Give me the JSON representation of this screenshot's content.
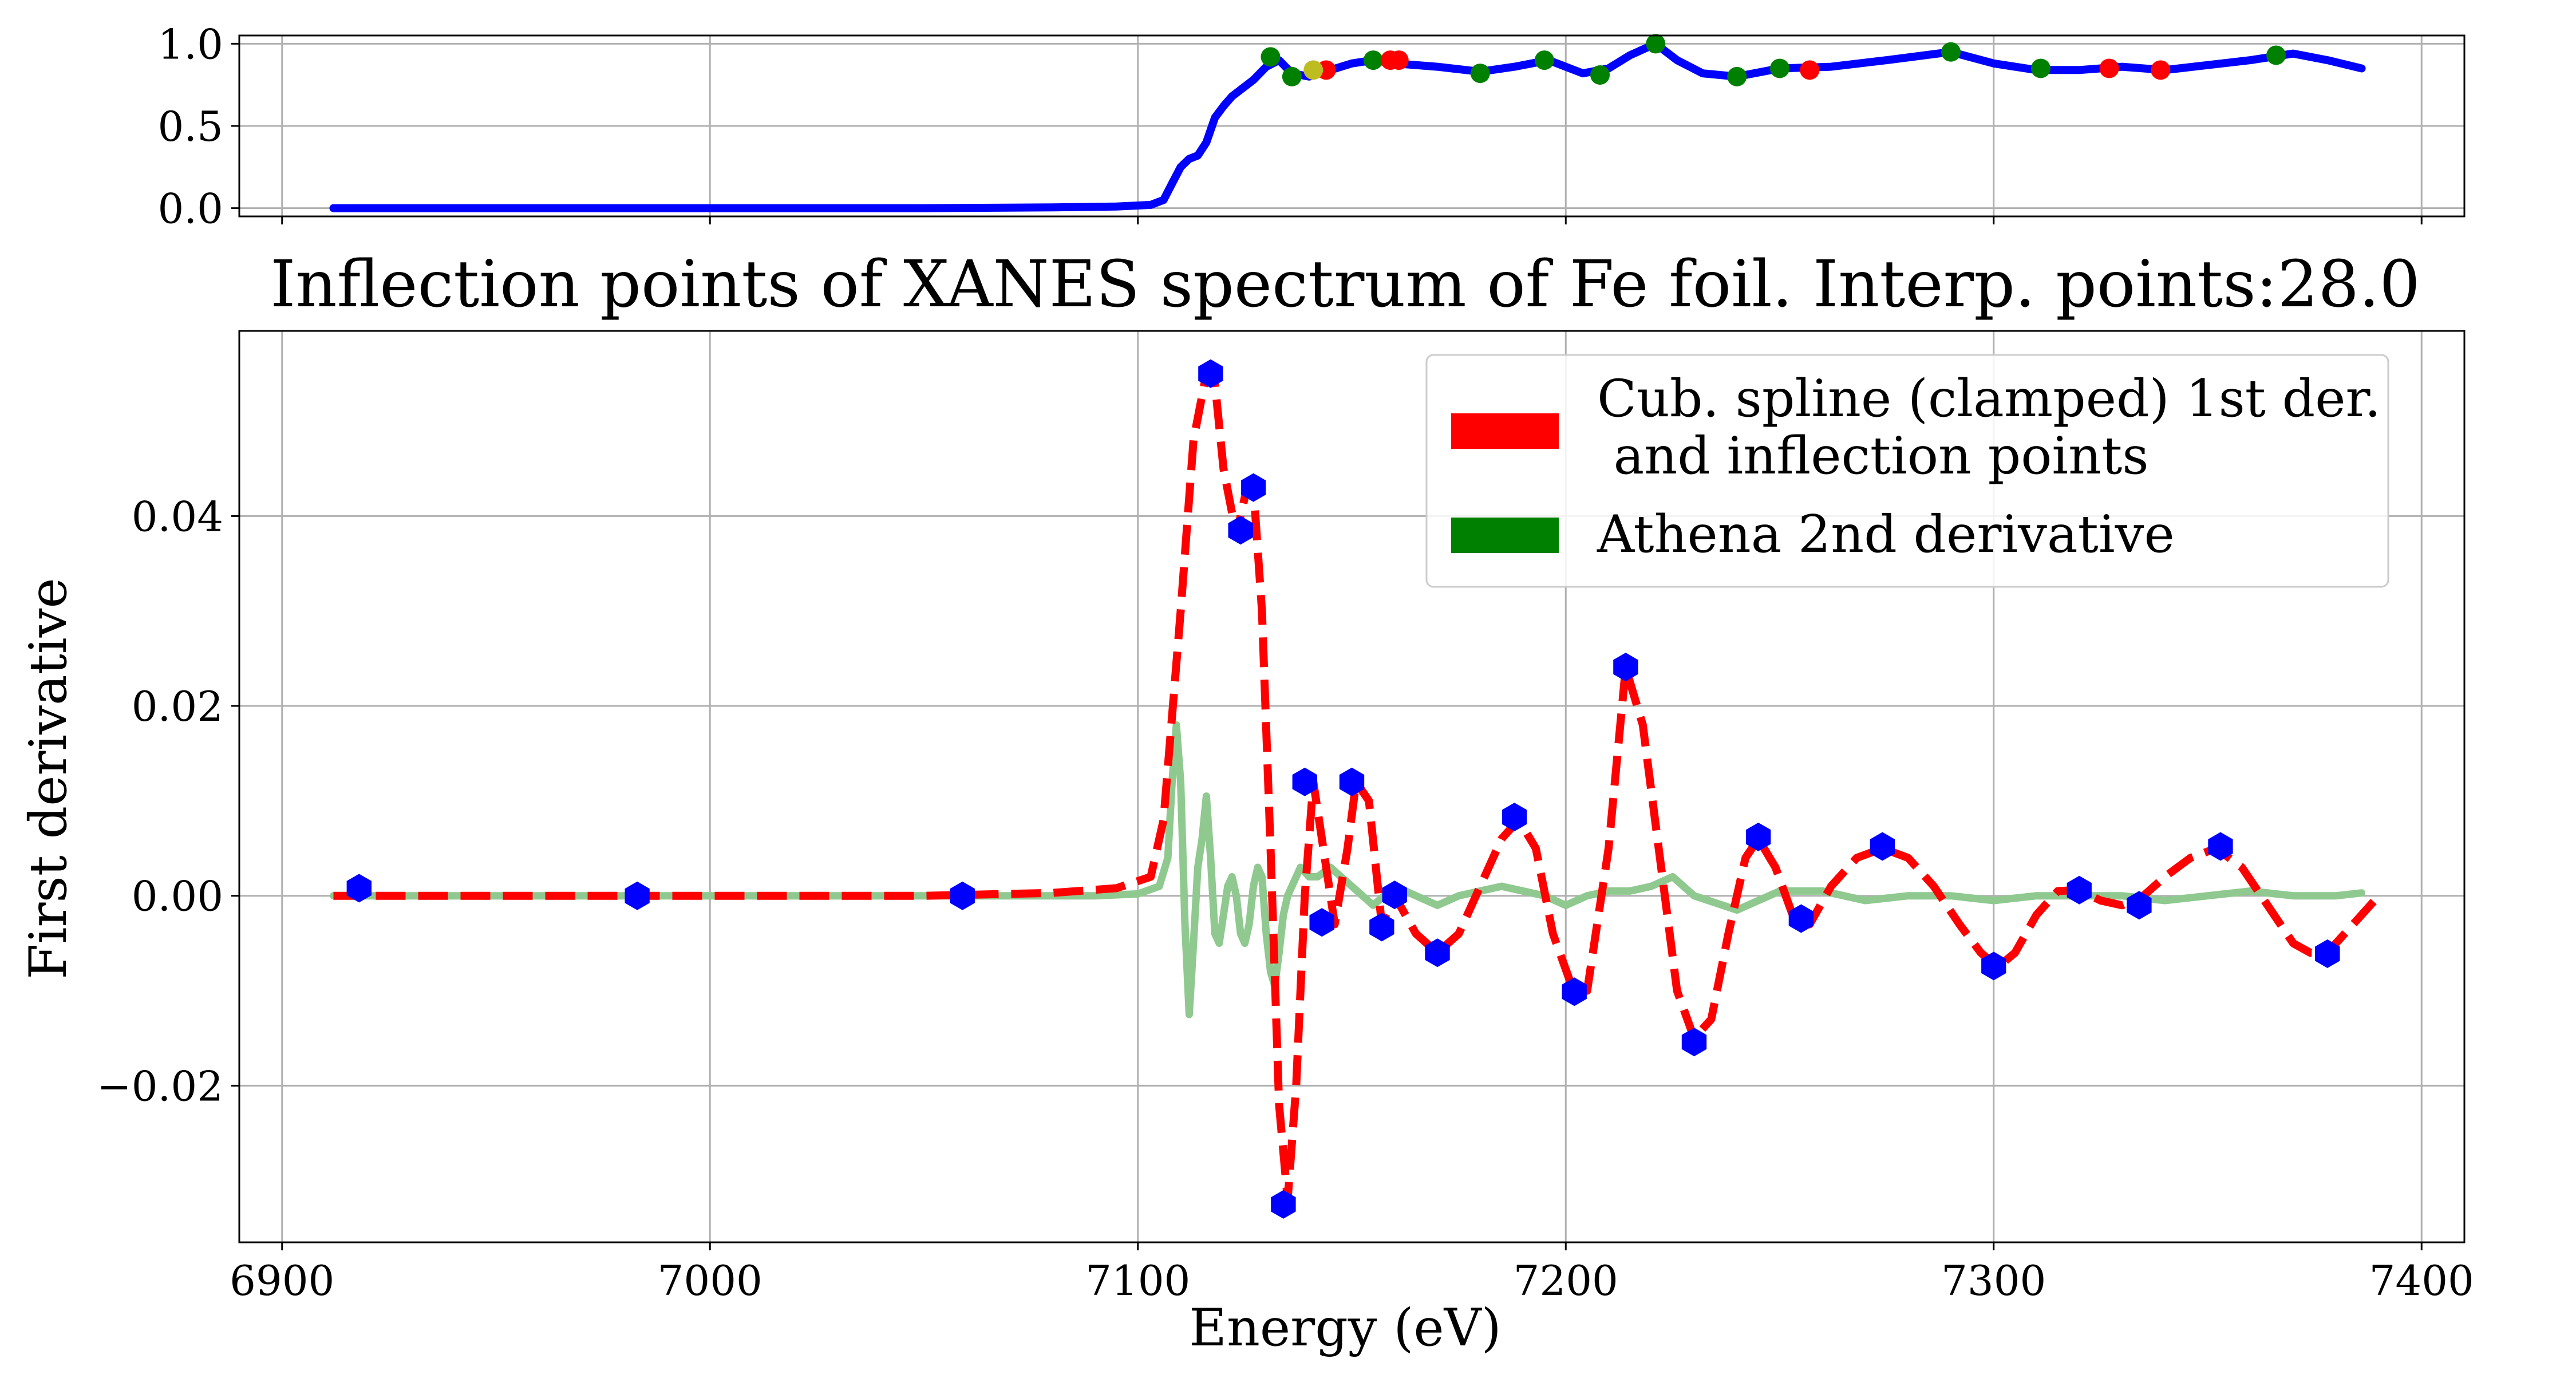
{
  "chart_data": [
    {
      "type": "line",
      "title": "",
      "xlabel": "",
      "ylabel": "",
      "xlim": [
        6890,
        7410
      ],
      "ylim": [
        -0.05,
        1.05
      ],
      "grid": true,
      "x_ticks": [
        6900,
        7000,
        7100,
        7200,
        7300,
        7400
      ],
      "y_ticks": [
        0.0,
        0.5,
        1.0
      ],
      "y_tick_labels": [
        "0.0",
        "0.5",
        "1.0"
      ],
      "series": [
        {
          "name": "",
          "color": "#0000ff",
          "x": [
            6912,
            6950,
            7000,
            7050,
            7080,
            7095,
            7103,
            7106,
            7108,
            7110,
            7112,
            7114,
            7116,
            7118,
            7120,
            7122,
            7124,
            7127,
            7130,
            7133,
            7136,
            7140,
            7145,
            7150,
            7155,
            7160,
            7170,
            7180,
            7188,
            7196,
            7204,
            7210,
            7215,
            7221,
            7226,
            7232,
            7240,
            7250,
            7262,
            7275,
            7290,
            7300,
            7310,
            7320,
            7330,
            7340,
            7350,
            7360,
            7370,
            7378,
            7386
          ],
          "y": [
            0.0,
            0.0,
            0.0,
            0.0,
            0.005,
            0.01,
            0.02,
            0.05,
            0.15,
            0.25,
            0.3,
            0.32,
            0.4,
            0.55,
            0.62,
            0.68,
            0.72,
            0.78,
            0.86,
            0.9,
            0.82,
            0.8,
            0.84,
            0.88,
            0.9,
            0.88,
            0.86,
            0.83,
            0.86,
            0.9,
            0.82,
            0.85,
            0.93,
            1.0,
            0.9,
            0.82,
            0.8,
            0.85,
            0.86,
            0.9,
            0.95,
            0.88,
            0.84,
            0.84,
            0.86,
            0.84,
            0.87,
            0.9,
            0.94,
            0.9,
            0.85
          ]
        }
      ],
      "markers": [
        {
          "color": "#008000",
          "x": [
            7131,
            7136,
            7155,
            7180,
            7195,
            7208,
            7221,
            7240,
            7250,
            7290,
            7311,
            7366
          ],
          "y": [
            0.92,
            0.8,
            0.9,
            0.82,
            0.9,
            0.81,
            1.0,
            0.8,
            0.85,
            0.95,
            0.85,
            0.93
          ]
        },
        {
          "color": "#ff0000",
          "x": [
            7144,
            7159,
            7161,
            7257,
            7327,
            7339
          ],
          "y": [
            0.84,
            0.9,
            0.9,
            0.84,
            0.85,
            0.84
          ]
        },
        {
          "color": "#bdbd22",
          "x": [
            7141
          ],
          "y": [
            0.84
          ]
        }
      ]
    },
    {
      "type": "line",
      "title": "Inflection points of XANES spectrum of Fe foil. Interp. points:28.0",
      "xlabel": "Energy (eV)",
      "ylabel": "First derivative",
      "xlim": [
        6890,
        7410
      ],
      "ylim": [
        -0.0365,
        0.0595
      ],
      "grid": true,
      "legend_position": "top-right",
      "x_ticks": [
        6900,
        7000,
        7100,
        7200,
        7300,
        7400
      ],
      "y_ticks": [
        -0.02,
        0.0,
        0.02,
        0.04
      ],
      "y_tick_labels": [
        "−0.02",
        "0.00",
        "0.02",
        "0.04"
      ],
      "legend": [
        {
          "label_line1": "Cub. spline (clamped) 1st der.",
          "label_line2": " and inflection points",
          "color": "#ff0000"
        },
        {
          "label_line1": "Athena 2nd derivative",
          "label_line2": "",
          "color": "#008000"
        }
      ],
      "series": [
        {
          "name": "Cub. spline (clamped) 1st der. and inflection points",
          "color": "#ff0000",
          "style": "dashed",
          "x": [
            6912,
            6950,
            7000,
            7050,
            7080,
            7095,
            7103,
            7106,
            7110,
            7113,
            7116,
            7118,
            7120,
            7123,
            7125,
            7127,
            7129,
            7131,
            7133,
            7135,
            7137,
            7139,
            7141,
            7143,
            7146,
            7149,
            7151,
            7154,
            7157,
            7160,
            7165,
            7170,
            7175,
            7180,
            7185,
            7189,
            7193,
            7197,
            7201,
            7205,
            7210,
            7214,
            7218,
            7222,
            7226,
            7230,
            7234,
            7238,
            7242,
            7245,
            7249,
            7253,
            7257,
            7262,
            7268,
            7274,
            7280,
            7286,
            7292,
            7297,
            7301,
            7305,
            7310,
            7315,
            7320,
            7325,
            7330,
            7335,
            7340,
            7346,
            7352,
            7358,
            7364,
            7370,
            7374,
            7378,
            7382,
            7386,
            7389
          ],
          "y": [
            0.0,
            0.0,
            0.0,
            0.0,
            0.0003,
            0.0008,
            0.002,
            0.008,
            0.03,
            0.048,
            0.055,
            0.054,
            0.045,
            0.038,
            0.042,
            0.043,
            0.03,
            0.005,
            -0.022,
            -0.032,
            -0.02,
            0.0,
            0.012,
            0.006,
            -0.003,
            0.005,
            0.012,
            0.01,
            -0.003,
            0.0,
            -0.004,
            -0.006,
            -0.004,
            0.001,
            0.006,
            0.008,
            0.005,
            -0.004,
            -0.009,
            -0.01,
            0.005,
            0.024,
            0.018,
            0.004,
            -0.01,
            -0.015,
            -0.013,
            -0.004,
            0.004,
            0.006,
            0.003,
            -0.002,
            -0.003,
            0.001,
            0.004,
            0.005,
            0.004,
            0.001,
            -0.003,
            -0.006,
            -0.0075,
            -0.006,
            -0.002,
            0.0005,
            0.0006,
            -0.0005,
            -0.001,
            0.0,
            0.002,
            0.004,
            0.005,
            0.003,
            -0.001,
            -0.005,
            -0.006,
            -0.006,
            -0.004,
            -0.002,
            -0.0005
          ]
        },
        {
          "name": "Athena 2nd derivative",
          "color": "#8fc98f",
          "style": "solid",
          "x": [
            6912,
            6950,
            7000,
            7050,
            7090,
            7100,
            7105,
            7107,
            7108,
            7109,
            7110,
            7111,
            7112,
            7113,
            7114,
            7115,
            7116,
            7117,
            7118,
            7119,
            7120,
            7121,
            7122,
            7123,
            7124,
            7125,
            7126,
            7127,
            7128,
            7129,
            7130,
            7131,
            7132,
            7133,
            7134,
            7135,
            7136,
            7138,
            7140,
            7142,
            7145,
            7150,
            7155,
            7160,
            7165,
            7170,
            7175,
            7180,
            7185,
            7190,
            7195,
            7200,
            7205,
            7210,
            7215,
            7220,
            7225,
            7230,
            7240,
            7250,
            7260,
            7270,
            7280,
            7290,
            7300,
            7310,
            7320,
            7330,
            7340,
            7350,
            7360,
            7370,
            7380,
            7386
          ],
          "y": [
            0.0,
            0.0,
            0.0,
            0.0,
            0.0,
            0.0002,
            0.001,
            0.004,
            0.012,
            0.018,
            0.012,
            -0.003,
            -0.0125,
            -0.005,
            0.003,
            0.006,
            0.0105,
            0.004,
            -0.004,
            -0.005,
            -0.002,
            0.001,
            0.002,
            0.0,
            -0.004,
            -0.005,
            -0.003,
            0.001,
            0.003,
            0.002,
            -0.004,
            -0.008,
            -0.0095,
            -0.006,
            -0.002,
            0.0,
            0.001,
            0.003,
            0.002,
            0.002,
            0.003,
            0.001,
            -0.001,
            0.001,
            0.0,
            -0.001,
            0.0,
            0.0005,
            0.001,
            0.0005,
            0.0,
            -0.001,
            0.0,
            0.0005,
            0.0005,
            0.001,
            0.002,
            0.0,
            -0.0015,
            0.0005,
            0.0005,
            -0.0005,
            0.0,
            0.0,
            -0.0005,
            0.0,
            0.0,
            0.0,
            -0.0005,
            0.0,
            0.0005,
            0.0,
            0.0,
            0.0003
          ]
        }
      ],
      "points": {
        "color": "#0000ff",
        "x": [
          6918,
          6983,
          7059,
          7117,
          7124,
          7127,
          7134,
          7139,
          7143,
          7150,
          7157,
          7160,
          7170,
          7188,
          7202,
          7214,
          7230,
          7245,
          7255,
          7274,
          7300,
          7320,
          7334,
          7353,
          7378
        ],
        "y": [
          0.0008,
          0.0,
          0.0,
          0.055,
          0.0385,
          0.043,
          -0.0325,
          0.012,
          -0.0028,
          0.012,
          -0.0033,
          0.0001,
          -0.006,
          0.0083,
          -0.0101,
          0.0241,
          -0.0154,
          0.0062,
          -0.0024,
          0.0052,
          -0.0074,
          0.0006,
          -0.001,
          0.0052,
          -0.0061
        ]
      }
    }
  ]
}
